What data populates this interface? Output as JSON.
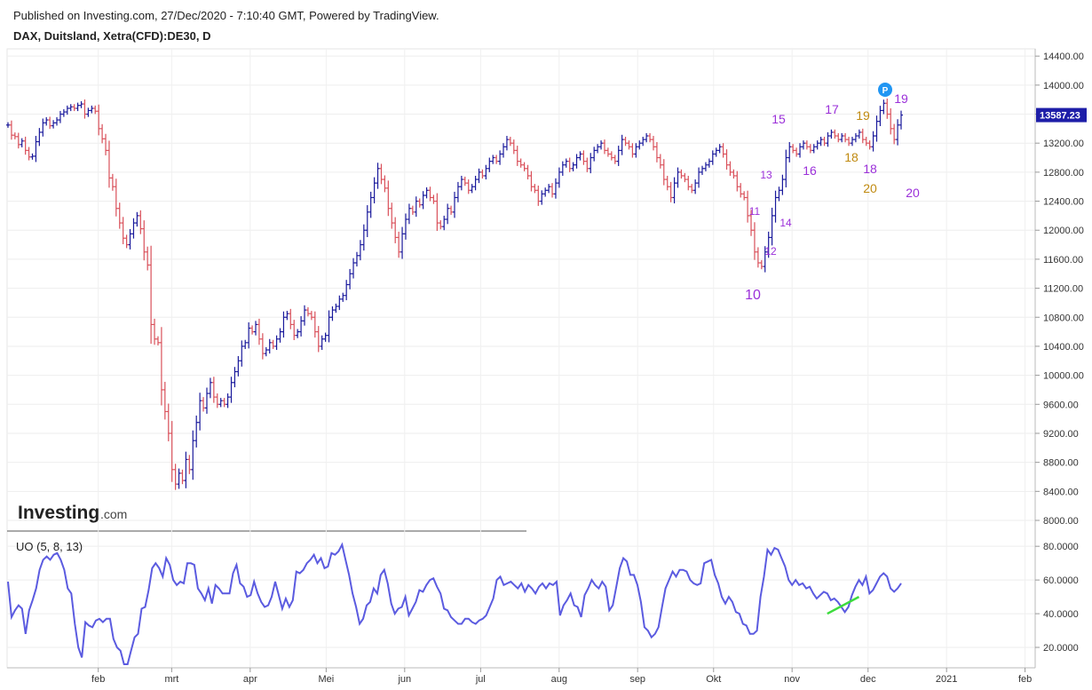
{
  "header": {
    "published": "Published on Investing.com, 27/Dec/2020 - 7:10:40 GMT, Powered by TradingView.",
    "symbol": "DAX, Duitsland, Xetra(CFD):DE30, D"
  },
  "logo": {
    "text": "Investing",
    "suffix": ".com"
  },
  "colors": {
    "up": "#1a1a9c",
    "down": "#d9505a",
    "uo_line": "#5b5be0",
    "trend_line": "#3ddc3d",
    "purple_label": "#9b30d9",
    "gold_label": "#c08a10",
    "price_badge": "#1e1ea8",
    "marker": "#2196f3"
  },
  "price_badge": "13587.23",
  "marker_label": "P",
  "chart_data": [
    {
      "type": "ohlc",
      "name": "price",
      "ylim": [
        8000,
        14500
      ],
      "y_ticks": [
        "14400.00",
        "14000.00",
        "13600.00",
        "13200.00",
        "12800.00",
        "12400.00",
        "12000.00",
        "11600.00",
        "11200.00",
        "10800.00",
        "10400.00",
        "10000.00",
        "9600.00",
        "9200.00",
        "8800.00",
        "8400.00",
        "8000.00"
      ],
      "x_labels": [
        "feb",
        "mrt",
        "apr",
        "Mei",
        "jun",
        "jul",
        "aug",
        "sep",
        "Okt",
        "nov",
        "dec",
        "2021",
        "feb"
      ],
      "x_range_days": [
        0,
        406
      ],
      "month_day_offsets": [
        8,
        37,
        68,
        98,
        129,
        159,
        190,
        221,
        251,
        282,
        312,
        343,
        374
      ],
      "closes": [
        13450,
        13310,
        13290,
        13180,
        13230,
        13100,
        13010,
        13020,
        13220,
        13350,
        13480,
        13520,
        13440,
        13480,
        13520,
        13600,
        13630,
        13680,
        13700,
        13680,
        13720,
        13740,
        13600,
        13650,
        13680,
        13640,
        13400,
        13260,
        13100,
        12720,
        12600,
        12300,
        12100,
        11890,
        11800,
        11950,
        12100,
        12200,
        12020,
        11700,
        11520,
        10700,
        10500,
        10450,
        9800,
        9500,
        9200,
        8700,
        8500,
        8650,
        8550,
        8840,
        8700,
        9100,
        9350,
        9650,
        9550,
        9750,
        9900,
        9700,
        9600,
        9650,
        9600,
        9700,
        9900,
        10050,
        10200,
        10400,
        10450,
        10650,
        10600,
        10700,
        10500,
        10300,
        10350,
        10450,
        10400,
        10500,
        10600,
        10800,
        10850,
        10700,
        10550,
        10600,
        10750,
        10900,
        10850,
        10800,
        10600,
        10400,
        10500,
        10550,
        10800,
        10900,
        10950,
        11050,
        11100,
        11250,
        11400,
        11550,
        11650,
        11800,
        12000,
        12250,
        12450,
        12650,
        12850,
        12700,
        12580,
        12300,
        12100,
        11900,
        11700,
        11950,
        12150,
        12300,
        12250,
        12400,
        12350,
        12480,
        12550,
        12450,
        12400,
        12100,
        12050,
        12150,
        12300,
        12250,
        12450,
        12600,
        12700,
        12650,
        12550,
        12600,
        12700,
        12800,
        12750,
        12850,
        12950,
        13000,
        12950,
        13050,
        13150,
        13250,
        13200,
        13100,
        12950,
        12900,
        12850,
        12750,
        12600,
        12550,
        12400,
        12500,
        12550,
        12600,
        12500,
        12650,
        12800,
        12900,
        12950,
        12850,
        12900,
        13000,
        13050,
        12950,
        12850,
        13000,
        13100,
        13150,
        13200,
        13100,
        13050,
        13000,
        12950,
        13100,
        13250,
        13200,
        13150,
        13050,
        13150,
        13200,
        13250,
        13300,
        13250,
        13150,
        13000,
        12900,
        12700,
        12600,
        12450,
        12650,
        12800,
        12750,
        12700,
        12600,
        12550,
        12650,
        12800,
        12850,
        12900,
        12950,
        13050,
        13100,
        13150,
        13050,
        12900,
        12800,
        12750,
        12600,
        12500,
        12450,
        12200,
        12000,
        11700,
        11550,
        11500,
        11700,
        11900,
        12200,
        12450,
        12550,
        12700,
        13000,
        13150,
        13100,
        13050,
        13150,
        13200,
        13150,
        13100,
        13150,
        13200,
        13250,
        13200,
        13300,
        13350,
        13300,
        13250,
        13300,
        13250,
        13200,
        13250,
        13300,
        13350,
        13250,
        13200,
        13150,
        13300,
        13500,
        13650,
        13750,
        13600,
        13400,
        13250,
        13450,
        13587
      ]
    },
    {
      "type": "line",
      "name": "UO (5, 8, 13)",
      "label": "UO (5, 8, 13)",
      "ylim": [
        10,
        88
      ],
      "y_ticks": [
        "80.0000",
        "60.0000",
        "40.0000",
        "20.0000"
      ],
      "values": [
        59,
        38,
        42,
        45,
        43,
        28,
        42,
        48,
        55,
        66,
        72,
        74,
        72,
        75,
        76,
        72,
        66,
        55,
        52,
        34,
        20,
        14,
        35,
        33,
        32,
        36,
        37,
        35,
        37,
        37,
        25,
        20,
        18,
        10,
        10,
        18,
        26,
        28,
        43,
        44,
        54,
        67,
        70,
        67,
        62,
        73,
        69,
        60,
        57,
        59,
        58,
        70,
        70,
        69,
        55,
        52,
        48,
        55,
        46,
        57,
        55,
        52,
        52,
        52,
        64,
        69,
        58,
        56,
        50,
        51,
        59,
        52,
        47,
        44,
        45,
        50,
        59,
        51,
        43,
        49,
        44,
        48,
        65,
        64,
        66,
        70,
        72,
        75,
        70,
        73,
        67,
        68,
        76,
        75,
        77,
        81,
        72,
        63,
        52,
        44,
        34,
        37,
        45,
        47,
        55,
        52,
        63,
        66,
        58,
        46,
        40,
        43,
        44,
        50,
        39,
        43,
        47,
        54,
        53,
        57,
        60,
        61,
        56,
        52,
        43,
        42,
        38,
        36,
        34,
        34,
        37,
        37,
        35,
        34,
        36,
        37,
        39,
        44,
        49,
        60,
        62,
        57,
        58,
        59,
        57,
        55,
        58,
        53,
        57,
        55,
        52,
        56,
        58,
        55,
        58,
        57,
        59,
        39,
        45,
        48,
        52,
        45,
        44,
        38,
        51,
        55,
        60,
        57,
        55,
        59,
        56,
        42,
        45,
        56,
        67,
        73,
        71,
        63,
        63,
        57,
        47,
        32,
        30,
        26,
        28,
        32,
        44,
        55,
        60,
        65,
        62,
        66,
        66,
        65,
        60,
        58,
        57,
        58,
        70,
        71,
        72,
        63,
        58,
        50,
        46,
        50,
        47,
        41,
        40,
        34,
        33,
        28,
        28,
        30,
        50,
        62,
        78,
        75,
        79,
        78,
        73,
        68,
        60,
        57,
        60,
        57,
        58,
        55,
        56,
        52,
        49,
        51,
        53,
        52,
        48,
        49,
        47,
        44,
        41,
        44,
        51,
        56,
        60,
        57,
        62,
        52,
        54,
        58,
        62,
        64,
        62,
        55,
        53,
        55,
        58
      ],
      "trend_line": {
        "from_index": 233,
        "from_value": 40,
        "to_index": 242,
        "to_value": 50
      }
    }
  ],
  "wave_labels": [
    {
      "text": "10",
      "color": "purple",
      "size": "large"
    },
    {
      "text": "11",
      "color": "purple",
      "size": "small"
    },
    {
      "text": "12",
      "color": "purple",
      "size": "small"
    },
    {
      "text": "13",
      "color": "purple",
      "size": "small"
    },
    {
      "text": "14",
      "color": "purple",
      "size": "small"
    },
    {
      "text": "15",
      "color": "purple",
      "size": "medium"
    },
    {
      "text": "16",
      "color": "purple",
      "size": "medium"
    },
    {
      "text": "17",
      "color": "purple",
      "size": "medium"
    },
    {
      "text": "18",
      "color": "gold",
      "size": "medium"
    },
    {
      "text": "18",
      "color": "purple",
      "size": "medium"
    },
    {
      "text": "19",
      "color": "gold",
      "size": "medium"
    },
    {
      "text": "19",
      "color": "purple",
      "size": "medium"
    },
    {
      "text": "20",
      "color": "gold",
      "size": "medium"
    },
    {
      "text": "20",
      "color": "purple",
      "size": "medium"
    }
  ]
}
